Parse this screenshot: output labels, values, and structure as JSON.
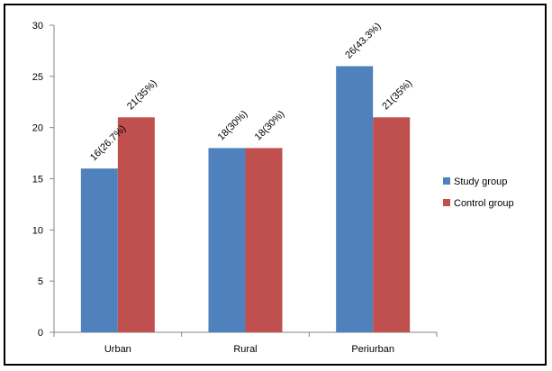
{
  "chart_data": {
    "type": "bar",
    "title": "",
    "xlabel": "",
    "ylabel": "",
    "categories": [
      "Urban",
      "Rural",
      "Periurban"
    ],
    "ylim": [
      0,
      30
    ],
    "yticks": [
      "0",
      "5",
      "10",
      "15",
      "20",
      "25",
      "30"
    ],
    "grid": false,
    "legend_position": "right",
    "series": [
      {
        "name": "Study group",
        "color": "#4F81BD",
        "values": [
          16,
          18,
          26
        ],
        "labels": [
          "16(26.7%)",
          "18(30%)",
          "26(43.3%)"
        ]
      },
      {
        "name": "Control group",
        "color": "#C0504D",
        "values": [
          21,
          18,
          21
        ],
        "labels": [
          "21(35%)",
          "18(30%)",
          "21(35%)"
        ]
      }
    ]
  }
}
